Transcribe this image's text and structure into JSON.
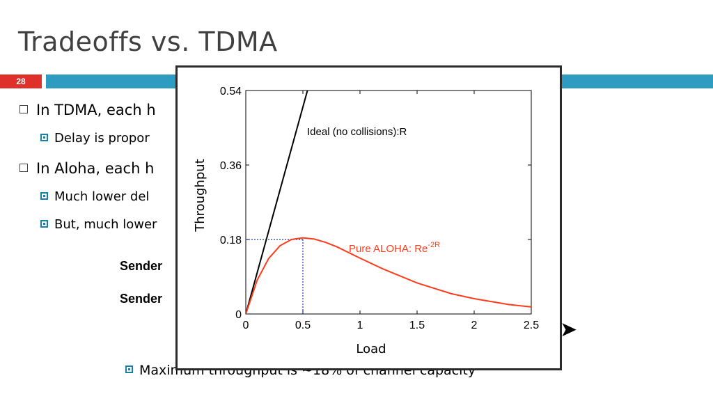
{
  "slide": {
    "title": "Tradeoffs vs. TDMA",
    "number": "28",
    "accent_color": "#e0302a",
    "bar_color": "#2e9cc0"
  },
  "bullets": [
    {
      "level": 1,
      "text": "In TDMA, each h"
    },
    {
      "level": 2,
      "text": "Delay is propor"
    },
    {
      "level": 1,
      "text": "In Aloha, each h"
    },
    {
      "level": 2,
      "text": "Much lower del"
    },
    {
      "level": 2,
      "text": "But, much lower"
    }
  ],
  "senders": [
    "Sender",
    "Sender"
  ],
  "footer_bullet": "Maximum throughput is ~18% of channel capacity",
  "chart_data": {
    "type": "line",
    "xlabel": "Load",
    "ylabel": "Throughput",
    "xlim": [
      0,
      2.5
    ],
    "ylim": [
      0,
      0.54
    ],
    "xticks": [
      "0",
      "0.5",
      "1",
      "1.5",
      "2",
      "2.5"
    ],
    "yticks": [
      "0",
      "0.18",
      "0.36",
      "0.54"
    ],
    "series": [
      {
        "name": "Ideal (no collisions):R",
        "color": "#000000",
        "x": [
          0,
          0.54
        ],
        "y": [
          0,
          0.54
        ]
      },
      {
        "name": "Pure ALOHA: Re",
        "name_sup": "-2R",
        "color": "#ff3b1a",
        "x": [
          0,
          0.1,
          0.2,
          0.3,
          0.4,
          0.5,
          0.6,
          0.7,
          0.8,
          1.0,
          1.2,
          1.5,
          1.8,
          2.0,
          2.3,
          2.5
        ],
        "y": [
          0,
          0.082,
          0.134,
          0.165,
          0.18,
          0.184,
          0.181,
          0.173,
          0.162,
          0.135,
          0.109,
          0.075,
          0.049,
          0.037,
          0.023,
          0.017
        ]
      }
    ],
    "reference_point": {
      "x": 0.5,
      "y": 0.18
    }
  }
}
